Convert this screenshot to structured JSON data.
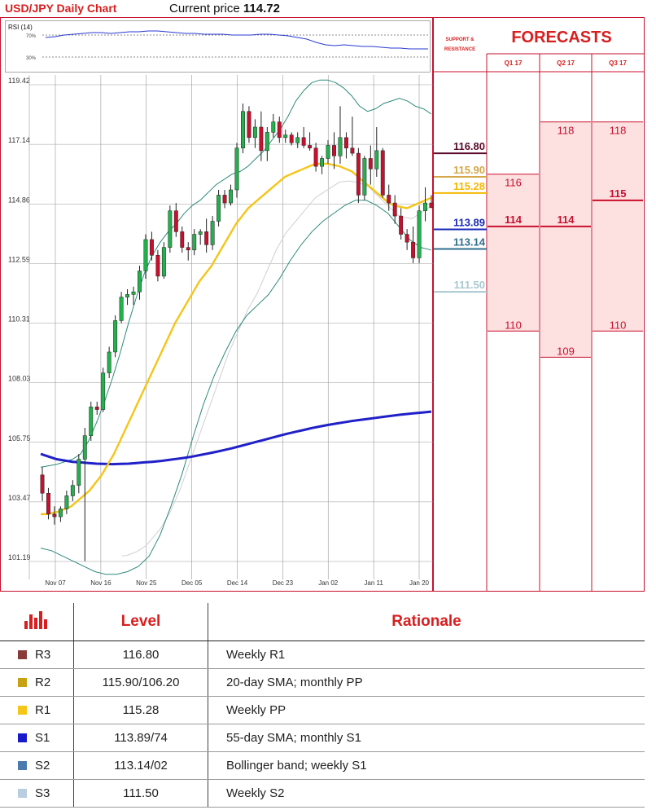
{
  "header": {
    "title": "USD/JPY Daily Chart",
    "price_label": "Current price",
    "price_value": "114.72"
  },
  "rsi": {
    "label": "RSI (14)",
    "level_high": "70%",
    "level_low": "30%",
    "values": [
      66,
      67,
      69,
      70,
      71,
      72,
      72,
      71,
      72,
      73,
      73,
      74,
      74,
      73,
      72,
      71,
      71,
      70,
      70,
      70,
      69,
      69,
      69,
      70,
      70,
      69,
      68,
      66,
      64,
      60,
      57,
      56,
      57,
      56,
      55,
      55,
      54,
      53,
      53,
      52,
      52,
      52
    ]
  },
  "side_panel": {
    "sr_title": "SUPPORT & RESISTANCE",
    "forecast_title": "FORECASTS",
    "quarters": [
      "Q1 17",
      "Q2 17",
      "Q3 17"
    ]
  },
  "colors": {
    "up_candle": "#22b14c",
    "down_candle": "#c8102e",
    "sma20": "#f5c518",
    "sma200": "#2020c8",
    "bollinger": "#2e8b7a",
    "sma_long_light": "#d0d0d0",
    "accent_red": "#d81e1e",
    "forecast_fill": "#fde0e0"
  },
  "chart_data": {
    "type": "candlestick",
    "x_labels": [
      "Nov 07",
      "Nov 16",
      "Nov 25",
      "Dec 05",
      "Dec 14",
      "Dec 23",
      "Jan 02",
      "Jan 11",
      "Jan 20"
    ],
    "y_ticks": [
      "119.42",
      "117.14",
      "114.86",
      "112.59",
      "110.31",
      "108.03",
      "105.75",
      "103.47",
      "101.19"
    ],
    "ylim": [
      101.19,
      119.42
    ],
    "candles": [
      [
        104.5,
        104.8,
        103.5,
        103.8
      ],
      [
        103.8,
        104.0,
        102.8,
        103.0
      ],
      [
        103.0,
        103.3,
        102.6,
        102.9
      ],
      [
        102.9,
        103.3,
        102.7,
        103.2
      ],
      [
        103.2,
        103.9,
        103.0,
        103.7
      ],
      [
        103.7,
        104.3,
        103.5,
        104.1
      ],
      [
        104.1,
        105.3,
        103.8,
        105.1
      ],
      [
        105.1,
        106.3,
        101.2,
        106.0
      ],
      [
        106.0,
        107.3,
        105.8,
        107.1
      ],
      [
        107.1,
        107.3,
        106.8,
        107.0
      ],
      [
        107.0,
        108.6,
        106.9,
        108.4
      ],
      [
        108.4,
        109.4,
        108.2,
        109.2
      ],
      [
        109.2,
        110.6,
        109.0,
        110.4
      ],
      [
        110.4,
        111.5,
        110.3,
        111.3
      ],
      [
        111.3,
        111.6,
        111.0,
        111.4
      ],
      [
        111.4,
        111.7,
        111.0,
        111.5
      ],
      [
        111.5,
        112.5,
        111.2,
        112.3
      ],
      [
        112.3,
        113.7,
        112.0,
        113.5
      ],
      [
        113.5,
        113.8,
        112.7,
        112.9
      ],
      [
        112.9,
        113.1,
        111.9,
        112.1
      ],
      [
        112.1,
        113.4,
        112.0,
        113.2
      ],
      [
        113.2,
        114.8,
        113.0,
        114.6
      ],
      [
        114.6,
        114.9,
        113.6,
        113.8
      ],
      [
        113.8,
        114.0,
        113.0,
        113.2
      ],
      [
        113.2,
        113.4,
        112.7,
        113.1
      ],
      [
        113.1,
        113.9,
        112.9,
        113.7
      ],
      [
        113.7,
        113.9,
        113.3,
        113.8
      ],
      [
        113.8,
        114.3,
        113.0,
        113.3
      ],
      [
        113.3,
        114.4,
        113.1,
        114.2
      ],
      [
        114.2,
        115.4,
        114.0,
        115.2
      ],
      [
        115.2,
        115.4,
        114.7,
        114.9
      ],
      [
        114.9,
        115.6,
        114.8,
        115.4
      ],
      [
        115.4,
        117.2,
        115.1,
        117.0
      ],
      [
        117.0,
        118.7,
        116.8,
        118.4
      ],
      [
        118.4,
        118.6,
        117.2,
        117.4
      ],
      [
        117.4,
        118.1,
        117.0,
        117.8
      ],
      [
        117.8,
        118.4,
        116.5,
        116.9
      ],
      [
        116.9,
        117.8,
        116.5,
        117.6
      ],
      [
        117.6,
        118.3,
        117.4,
        118.0
      ],
      [
        118.0,
        118.2,
        117.2,
        117.4
      ],
      [
        117.4,
        117.7,
        117.2,
        117.5
      ],
      [
        117.5,
        117.6,
        117.1,
        117.2
      ],
      [
        117.2,
        117.6,
        117.0,
        117.4
      ],
      [
        117.4,
        117.8,
        117.0,
        117.1
      ],
      [
        117.1,
        117.6,
        116.9,
        117.0
      ],
      [
        117.0,
        117.2,
        116.1,
        116.3
      ],
      [
        116.3,
        116.7,
        116.0,
        116.6
      ],
      [
        116.6,
        117.3,
        116.4,
        117.1
      ],
      [
        117.1,
        117.6,
        116.2,
        116.7
      ],
      [
        116.7,
        118.6,
        116.4,
        117.4
      ],
      [
        117.4,
        117.6,
        116.6,
        117.0
      ],
      [
        117.0,
        118.2,
        116.7,
        116.8
      ],
      [
        116.8,
        117.0,
        114.9,
        115.2
      ],
      [
        115.2,
        116.7,
        115.0,
        116.6
      ],
      [
        116.6,
        117.1,
        115.6,
        116.2
      ],
      [
        116.2,
        117.8,
        115.9,
        116.9
      ],
      [
        116.9,
        117.0,
        115.1,
        115.2
      ],
      [
        115.2,
        115.6,
        114.6,
        114.9
      ],
      [
        114.9,
        115.2,
        114.1,
        114.4
      ],
      [
        114.4,
        114.7,
        113.5,
        113.7
      ],
      [
        113.7,
        113.9,
        113.1,
        113.4
      ],
      [
        113.4,
        114.0,
        112.6,
        112.8
      ],
      [
        112.8,
        114.8,
        112.6,
        114.6
      ],
      [
        114.6,
        115.5,
        114.2,
        114.9
      ],
      [
        114.9,
        115.2,
        114.7,
        114.72
      ]
    ],
    "sma20": [
      103.0,
      103.0,
      103.05,
      103.1,
      103.2,
      103.3,
      103.5,
      103.7,
      103.9,
      104.2,
      104.5,
      104.9,
      105.3,
      105.8,
      106.3,
      106.8,
      107.3,
      107.8,
      108.3,
      108.8,
      109.3,
      109.8,
      110.3,
      110.7,
      111.1,
      111.5,
      111.9,
      112.2,
      112.5,
      112.9,
      113.3,
      113.7,
      114.1,
      114.4,
      114.7,
      114.9,
      115.1,
      115.3,
      115.5,
      115.7,
      115.9,
      116.0,
      116.1,
      116.2,
      116.3,
      116.4,
      116.4,
      116.4,
      116.35,
      116.3,
      116.2,
      116.1,
      115.9,
      115.7,
      115.5,
      115.3,
      115.1,
      114.9,
      114.8,
      114.75,
      114.7,
      114.8,
      114.9,
      115.0,
      115.1
    ],
    "sma200": [
      105.3,
      105.2,
      105.1,
      105.05,
      105.0,
      104.98,
      104.95,
      104.93,
      104.92,
      104.91,
      104.92,
      104.93,
      104.95,
      104.98,
      105.0,
      105.03,
      105.07,
      105.11,
      105.15,
      105.2,
      105.26,
      105.32,
      105.38,
      105.45,
      105.52,
      105.6,
      105.68,
      105.76,
      105.84,
      105.92,
      106.0,
      106.08,
      106.15,
      106.22,
      106.29,
      106.35,
      106.41,
      106.46,
      106.51,
      106.56,
      106.6,
      106.64,
      106.68,
      106.72,
      106.76,
      106.8,
      106.83,
      106.86,
      106.89,
      106.92
    ],
    "bollinger_upper": [
      104.8,
      104.85,
      104.9,
      105.0,
      105.1,
      105.3,
      105.8,
      106.5,
      107.3,
      108.2,
      109.2,
      110.3,
      111.3,
      112.2,
      112.9,
      113.4,
      113.8,
      114.1,
      114.5,
      114.8,
      115.0,
      115.3,
      115.6,
      115.8,
      116.0,
      116.1,
      116.3,
      116.6,
      116.9,
      117.3,
      117.7,
      118.2,
      118.8,
      119.2,
      119.5,
      119.6,
      119.6,
      119.5,
      119.3,
      119.0,
      118.6,
      118.4,
      118.5,
      118.7,
      118.8,
      118.9,
      118.8,
      118.6,
      118.5,
      118.3
    ],
    "bollinger_lower": [
      101.7,
      101.6,
      101.4,
      101.2,
      101.0,
      100.8,
      100.7,
      100.7,
      100.8,
      101.0,
      101.4,
      102.2,
      103.3,
      104.5,
      105.9,
      107.2,
      108.3,
      109.2,
      110.0,
      110.6,
      111.0,
      111.4,
      112.0,
      112.7,
      113.3,
      113.8,
      114.2,
      114.5,
      114.8,
      115.0,
      115.0,
      114.8,
      114.5,
      114.0,
      113.5,
      113.2,
      113.1
    ],
    "support_resistance": [
      {
        "value": "116.80",
        "color": "#5a0a2a"
      },
      {
        "value": "115.90",
        "color": "#d4a84a"
      },
      {
        "value": "115.28",
        "color": "#f5b800"
      },
      {
        "value": "113.89",
        "color": "#1a2ab8"
      },
      {
        "value": "113.14",
        "color": "#2e6e8e"
      },
      {
        "value": "111.50",
        "color": "#a8c8d0"
      }
    ],
    "forecasts": [
      {
        "quarter": "Q1 17",
        "high": "116",
        "mid": "114",
        "low": "110"
      },
      {
        "quarter": "Q2 17",
        "high": "118",
        "mid": "114",
        "low": "109"
      },
      {
        "quarter": "Q3 17",
        "high": "118",
        "mid": "115",
        "low": "110"
      }
    ]
  },
  "levels_table": {
    "headers": {
      "level": "Level",
      "rationale": "Rationale"
    },
    "rows": [
      {
        "name": "R3",
        "color": "#8b3a3a",
        "level": "116.80",
        "rationale": "Weekly R1"
      },
      {
        "name": "R2",
        "color": "#c8a010",
        "level": "115.90/106.20",
        "rationale": "20-day SMA; monthly PP"
      },
      {
        "name": "R1",
        "color": "#f5c518",
        "level": "115.28",
        "rationale": "Weekly PP"
      },
      {
        "name": "S1",
        "color": "#1a1acd",
        "level": "113.89/74",
        "rationale": "55-day SMA; monthly S1"
      },
      {
        "name": "S2",
        "color": "#4a7ab0",
        "level": "113.14/02",
        "rationale": "Bollinger band; weekly S1"
      },
      {
        "name": "S3",
        "color": "#b8cde0",
        "level": "111.50",
        "rationale": "Weekly S2"
      }
    ]
  }
}
